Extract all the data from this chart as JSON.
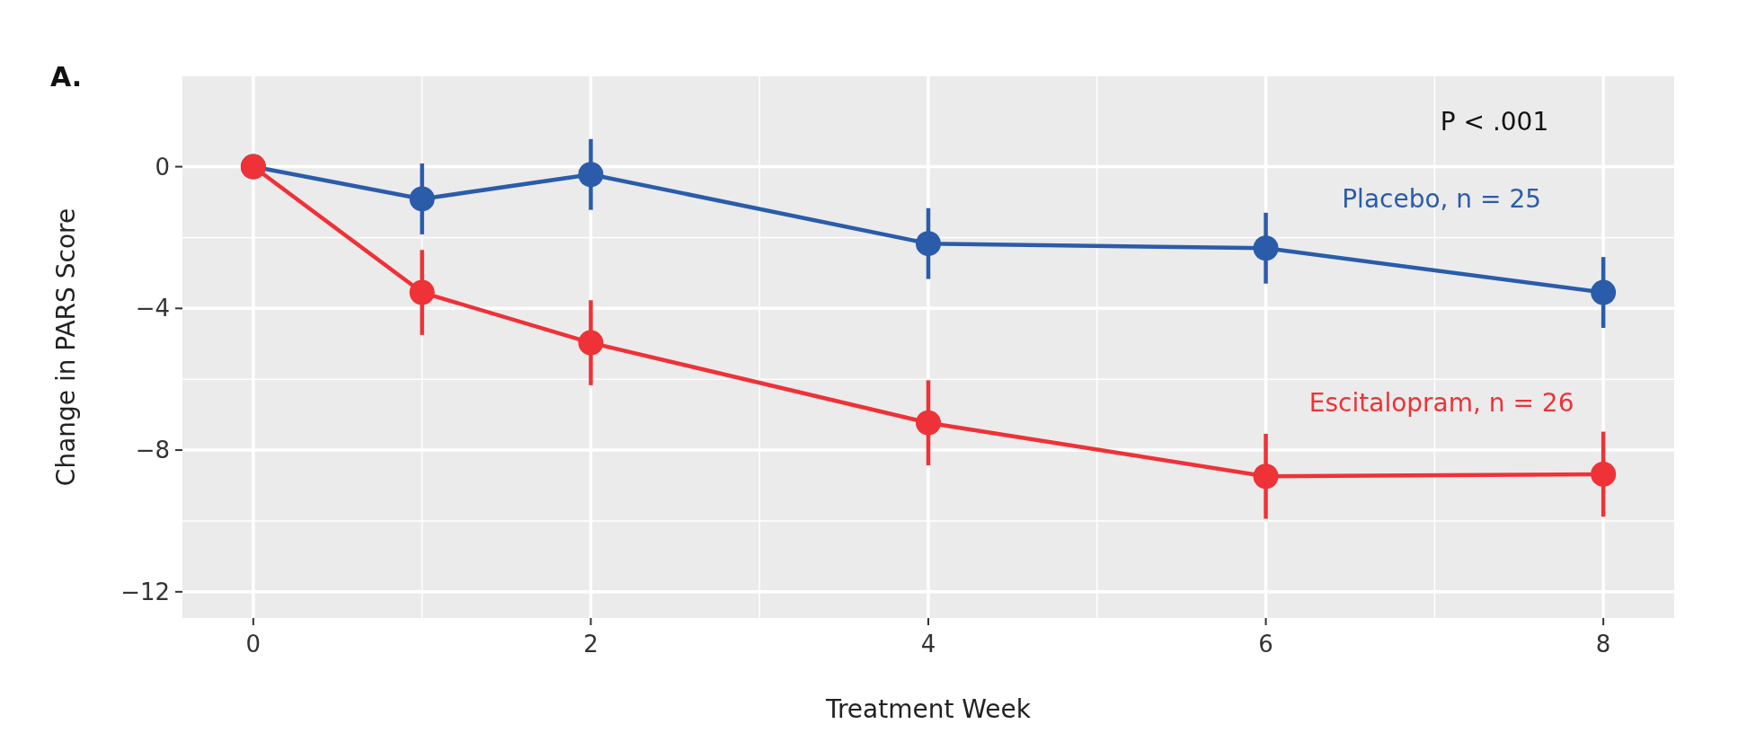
{
  "chart_data": {
    "type": "line",
    "xlabel": "Treatment Week",
    "ylabel": "Change in PARS Score",
    "annotations": [
      "A.",
      "P < .001"
    ],
    "x": [
      0,
      1,
      2,
      4,
      6,
      8
    ],
    "series": [
      {
        "name": "Placebo, n = 25",
        "color": "#2a5caa",
        "values": [
          0,
          -0.91,
          -0.22,
          -2.17,
          -2.3,
          -3.55
        ],
        "errors": [
          null,
          1.0,
          1.0,
          1.0,
          1.0,
          1.0
        ]
      },
      {
        "name": "Escitalopram, n = 26",
        "color": "#ee3237",
        "values": [
          0,
          -3.55,
          -4.97,
          -7.23,
          -8.74,
          -8.68
        ],
        "errors": [
          null,
          1.2,
          1.2,
          1.2,
          1.2,
          1.2
        ]
      }
    ],
    "xlim": [
      -0.42,
      8.42
    ],
    "xticks": [
      0,
      2,
      4,
      6,
      8
    ],
    "ylim": [
      -12.74,
      2.55
    ],
    "yticks": [
      0,
      {
        "value": -4,
        "label": "−4"
      },
      {
        "value": -8,
        "label": "−8"
      },
      {
        "value": -12,
        "label": "−12"
      }
    ],
    "grid": true,
    "marker": "circle",
    "line_style": "solid"
  }
}
